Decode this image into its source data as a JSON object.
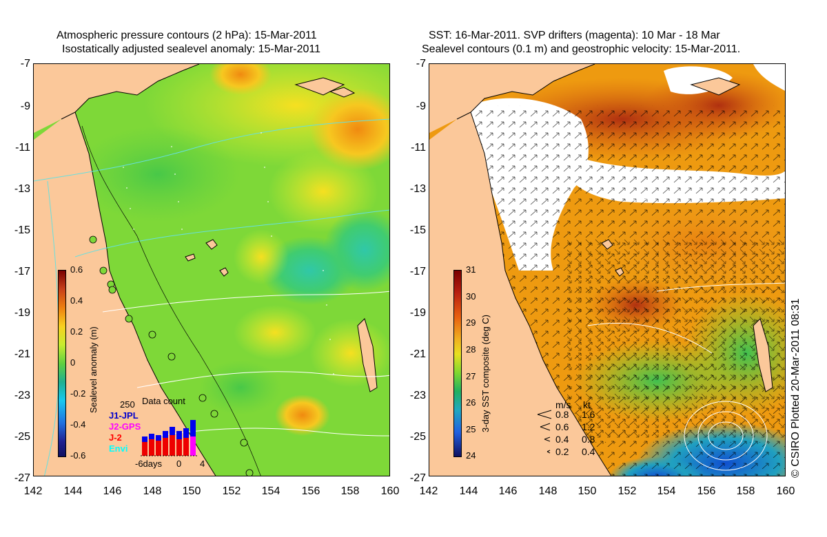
{
  "left_panel": {
    "title_line1": "Atmospheric pressure contours (2 hPa): 15-Mar-2011",
    "title_line2": "Isostatically adjusted sealevel anomaly: 15-Mar-2011",
    "colorbar": {
      "title": "Sealevel anomaly (m)",
      "ticks": [
        "0.6",
        "0.4",
        "0.2",
        "0",
        "-0.2",
        "-0.4",
        "-0.6"
      ]
    },
    "data_count": {
      "max_label": "250",
      "title": "Data count",
      "missions": [
        {
          "name": "J1-JPL",
          "color": "#0000cc"
        },
        {
          "name": "J2-GPS",
          "color": "#ff00ff"
        },
        {
          "name": "J-2",
          "color": "#ff0000"
        },
        {
          "name": "Envi",
          "color": "#00ffff"
        }
      ],
      "axis_labels": [
        "-6days",
        "0",
        "4"
      ]
    }
  },
  "right_panel": {
    "title_line1": "SST: 16-Mar-2011. SVP drifters (magenta): 10 Mar - 18 Mar",
    "title_line2": "Sealevel contours (0.1 m) and geostrophic velocity: 15-Mar-2011.",
    "colorbar": {
      "title": "3-day SST composite (deg C)",
      "ticks": [
        "31",
        "30",
        "29",
        "28",
        "27",
        "26",
        "25",
        "24"
      ]
    },
    "velocity_scale": {
      "header_ms": "m/s",
      "header_kt": "kt",
      "rows": [
        {
          "ms": "0.8",
          "kt": "1.6"
        },
        {
          "ms": "0.6",
          "kt": "1.2"
        },
        {
          "ms": "0.4",
          "kt": "0.8"
        },
        {
          "ms": "0.2",
          "kt": "0.4"
        }
      ]
    },
    "credit": "© CSIRO Plotted 20-Mar-2011 08:31"
  },
  "axes": {
    "lat_ticks": [
      "-7",
      "-9",
      "-11",
      "-13",
      "-15",
      "-17",
      "-19",
      "-21",
      "-23",
      "-25",
      "-27"
    ],
    "lon_ticks": [
      "142",
      "144",
      "146",
      "148",
      "150",
      "152",
      "154",
      "156",
      "158",
      "160"
    ]
  },
  "colors": {
    "land": "#fbc89a",
    "ocean_green": "#8fe23a",
    "sst_orange": "#ee9a10"
  }
}
